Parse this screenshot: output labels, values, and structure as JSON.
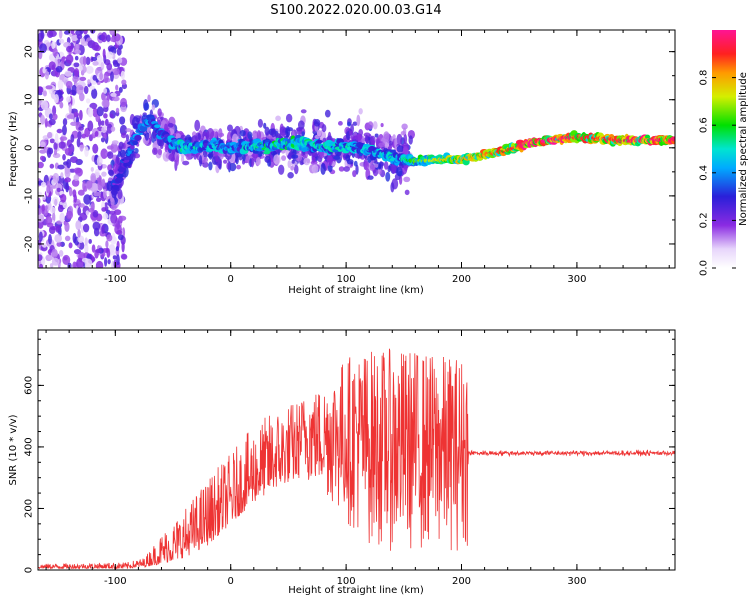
{
  "figure": {
    "title": "S100.2022.020.00.03.G14"
  },
  "chart_data": [
    {
      "type": "heatmap",
      "name": "spectrogram",
      "xlabel": "Height of straight line (km)",
      "ylabel": "Frequency (Hz)",
      "xlim": [
        -167,
        385
      ],
      "ylim": [
        -25,
        24.5
      ],
      "xticks": [
        -100,
        0,
        100,
        200,
        300
      ],
      "yticks": [
        -20,
        -10,
        0,
        10,
        20
      ],
      "colorbar": {
        "label": "Normalized spectral amplitude",
        "range": [
          0,
          1
        ],
        "ticks": [
          "0.0",
          "0.2",
          "0.4",
          "0.6",
          "0.8"
        ],
        "colormap": "rainbow (white-purple-blue-cyan-green-yellow-red-magenta)"
      },
      "ridge": {
        "description": "dominant frequency track",
        "x": [
          -100,
          -90,
          -80,
          -70,
          -60,
          -50,
          -40,
          -20,
          0,
          20,
          40,
          60,
          80,
          100,
          120,
          150,
          160,
          180,
          200,
          220,
          240,
          260,
          280,
          300,
          320,
          340,
          360,
          385
        ],
        "y": [
          -8,
          -2,
          3,
          6,
          3,
          1,
          0,
          0.5,
          0,
          0.3,
          0.5,
          1,
          0,
          0.5,
          -0.5,
          -2.5,
          -2.8,
          -2.5,
          -2.3,
          -1.5,
          -0.5,
          1,
          1.8,
          2.2,
          2.0,
          1.5,
          1.5,
          1.8
        ],
        "amplitude": [
          0.3,
          0.35,
          0.4,
          0.4,
          0.4,
          0.45,
          0.5,
          0.45,
          0.45,
          0.5,
          0.55,
          0.55,
          0.5,
          0.5,
          0.45,
          0.5,
          0.6,
          0.7,
          0.75,
          0.8,
          0.85,
          0.95,
          0.95,
          0.9,
          0.85,
          0.9,
          0.95,
          0.9
        ]
      },
      "noise_region_x": [
        -167,
        -100
      ]
    },
    {
      "type": "line",
      "name": "snr",
      "xlabel": "Height of straight line (km)",
      "ylabel": "SNR (10 * v/v)",
      "xlim": [
        -167,
        385
      ],
      "ylim": [
        0,
        780
      ],
      "xticks": [
        -100,
        0,
        100,
        200,
        300
      ],
      "yticks": [
        0,
        200,
        400,
        600
      ],
      "color": "#ee3333",
      "envelope": {
        "x": [
          -167,
          -90,
          -75,
          -60,
          -40,
          -20,
          0,
          20,
          40,
          60,
          80,
          100,
          120,
          140,
          160,
          180,
          200,
          205,
          206,
          250,
          300,
          385
        ],
        "low": [
          5,
          5,
          10,
          20,
          40,
          80,
          150,
          220,
          270,
          300,
          250,
          150,
          80,
          60,
          60,
          60,
          60,
          60,
          365,
          365,
          365,
          365
        ],
        "high": [
          20,
          25,
          40,
          120,
          200,
          300,
          380,
          470,
          530,
          560,
          600,
          700,
          720,
          720,
          720,
          700,
          700,
          700,
          395,
          395,
          395,
          395
        ]
      }
    }
  ]
}
